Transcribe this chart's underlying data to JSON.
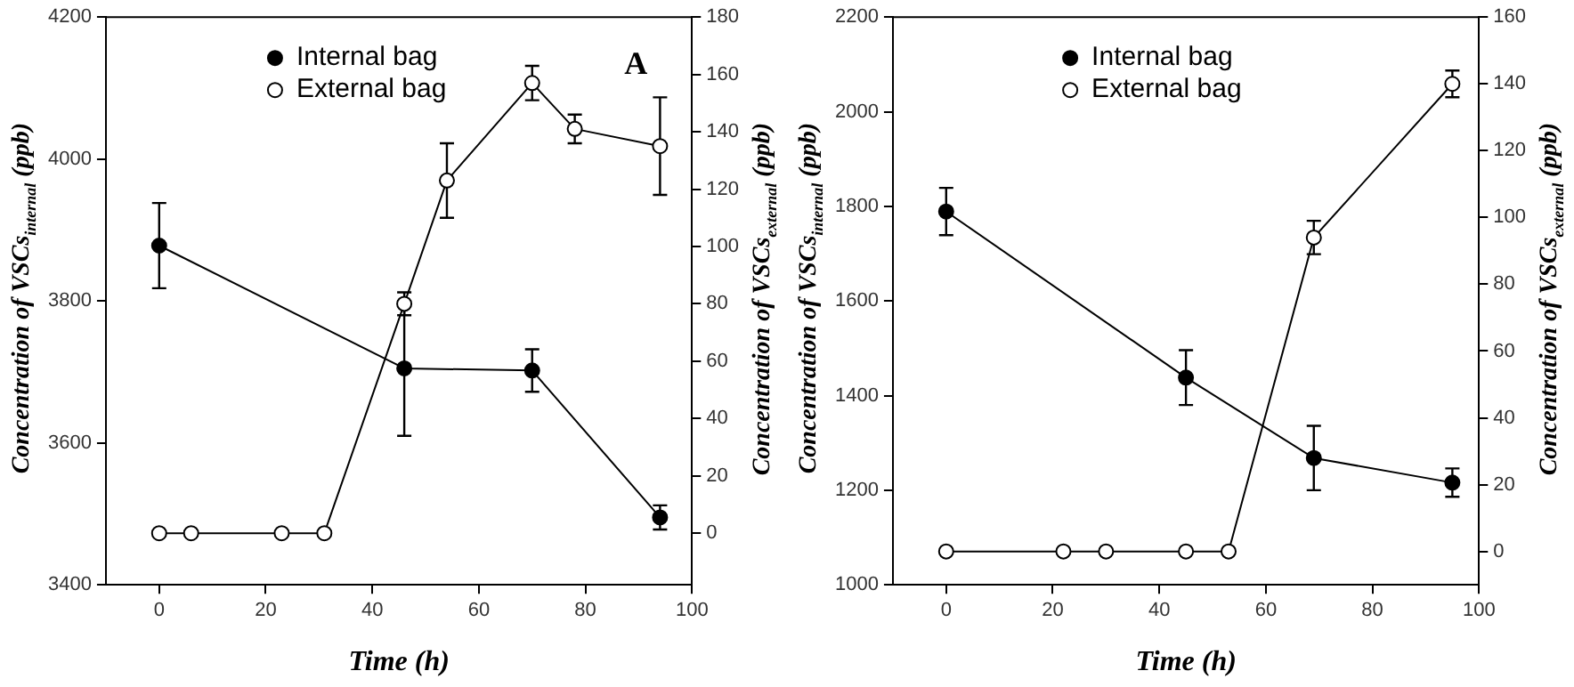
{
  "chart_data": [
    {
      "type": "line",
      "xlabel": "Time (h)",
      "ylabel": "Concentration of VSCs$_{internal}$ (ppb)",
      "y2label": "Concentration of VSCs$_{external}$ (ppb)",
      "annotations": [
        "A"
      ],
      "legend": "top left",
      "marker": "circle",
      "xlim": [
        -10,
        100
      ],
      "xticks": [
        0,
        20,
        40,
        60,
        80,
        100
      ],
      "ylim": [
        3400,
        4200
      ],
      "yticks": [
        3400,
        3600,
        3800,
        4000,
        4200
      ],
      "y2lim": [
        -18,
        180
      ],
      "y2ticks": [
        0,
        20,
        40,
        60,
        80,
        100,
        120,
        140,
        160,
        180
      ],
      "series": [
        {
          "name": "Internal bag",
          "color": "#000000",
          "x": [
            0,
            46,
            70,
            94
          ],
          "values": [
            3878,
            3705,
            3702,
            3495
          ],
          "errors": [
            60,
            95,
            30,
            17
          ]
        },
        {
          "name": "External bag",
          "color": "#ffffff",
          "axis": "y2",
          "x": [
            0,
            6,
            23,
            31,
            46,
            54,
            70,
            78,
            94
          ],
          "values": [
            0,
            0,
            0,
            0,
            80,
            123,
            157,
            141,
            135
          ],
          "errors": [
            null,
            null,
            null,
            null,
            4,
            13,
            6,
            5,
            17
          ]
        }
      ]
    },
    {
      "type": "line",
      "xlabel": "Time (h)",
      "ylabel": "Concentration of VSCs$_{internal}$ (ppb)",
      "y2label": "Concentration of VSCs$_{external}$ (ppb)",
      "legend": "top",
      "marker": "circle",
      "xlim": [
        -10,
        100
      ],
      "xticks": [
        0,
        20,
        40,
        60,
        80,
        100
      ],
      "ylim": [
        1000,
        2200
      ],
      "yticks": [
        1000,
        1200,
        1400,
        1600,
        1800,
        2000,
        2200
      ],
      "y2lim": [
        -10,
        160
      ],
      "y2ticks": [
        0,
        20,
        40,
        60,
        80,
        100,
        120,
        140,
        160
      ],
      "series": [
        {
          "name": "Internal bag",
          "color": "#000000",
          "x": [
            0,
            45,
            69,
            95
          ],
          "values": [
            1789,
            1438,
            1268,
            1216
          ],
          "errors": [
            50,
            58,
            68,
            30
          ]
        },
        {
          "name": "External bag",
          "color": "#ffffff",
          "axis": "y2",
          "x": [
            0,
            22,
            30,
            45,
            53,
            69,
            95
          ],
          "values": [
            0,
            0,
            0,
            0,
            0,
            94,
            140
          ],
          "errors": [
            null,
            null,
            null,
            null,
            null,
            5,
            4
          ]
        }
      ]
    }
  ]
}
